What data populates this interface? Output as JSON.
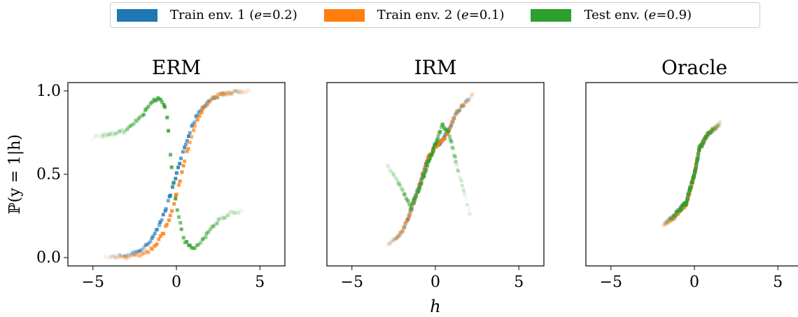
{
  "legend": {
    "items": [
      {
        "prefix": "Train env. 1 (",
        "var": "e",
        "suffix": "=0.2)",
        "color": "#1f77b4"
      },
      {
        "prefix": "Train env. 2 (",
        "var": "e",
        "suffix": "=0.1)",
        "color": "#ff7f0e"
      },
      {
        "prefix": "Test env. (",
        "var": "e",
        "suffix": "=0.9)",
        "color": "#2ca02c"
      }
    ]
  },
  "chart_data": [
    {
      "type": "scatter",
      "title": "ERM",
      "xlabel": "",
      "ylabel": "ℙ(y = 1|h)",
      "xlim": [
        -6.5,
        6.5
      ],
      "ylim": [
        -0.05,
        1.05
      ],
      "xticks": [
        -5,
        0,
        5
      ],
      "yticks": [
        0.0,
        0.5,
        1.0
      ],
      "series": [
        {
          "color": "#1f77b4",
          "shape": "sigmoid",
          "x_range": [
            -4.0,
            4.0
          ],
          "y_range": [
            0.0,
            1.0
          ],
          "k": 1.4,
          "x0": 0.0
        },
        {
          "color": "#ff7f0e",
          "shape": "sigmoid",
          "x_range": [
            -4.3,
            4.5
          ],
          "y_range": [
            0.0,
            1.0
          ],
          "k": 1.6,
          "x0": 0.3
        },
        {
          "color": "#2ca02c",
          "shape": "path",
          "points": [
            [
              -5.0,
              0.72
            ],
            [
              -4.0,
              0.74
            ],
            [
              -3.0,
              0.76
            ],
            [
              -2.0,
              0.86
            ],
            [
              -1.5,
              0.94
            ],
            [
              -1.0,
              0.95
            ],
            [
              -0.6,
              0.9
            ],
            [
              -0.3,
              0.55
            ],
            [
              0.0,
              0.3
            ],
            [
              0.5,
              0.1
            ],
            [
              1.0,
              0.05
            ],
            [
              1.5,
              0.1
            ],
            [
              2.5,
              0.22
            ],
            [
              3.2,
              0.27
            ],
            [
              4.0,
              0.28
            ]
          ]
        }
      ]
    },
    {
      "type": "scatter",
      "title": "IRM",
      "xlabel": "h",
      "ylabel": "",
      "xlim": [
        -6.5,
        6.5
      ],
      "ylim": [
        -0.05,
        1.05
      ],
      "xticks": [
        -5,
        0,
        5
      ],
      "yticks": [],
      "series": [
        {
          "color": "#1f77b4",
          "shape": "path",
          "points": [
            [
              -2.8,
              0.08
            ],
            [
              -2.0,
              0.15
            ],
            [
              -1.5,
              0.27
            ],
            [
              -1.0,
              0.42
            ],
            [
              -0.5,
              0.58
            ],
            [
              0.0,
              0.67
            ],
            [
              0.4,
              0.7
            ],
            [
              0.8,
              0.76
            ],
            [
              1.2,
              0.86
            ],
            [
              1.8,
              0.93
            ],
            [
              2.2,
              0.97
            ]
          ]
        },
        {
          "color": "#ff7f0e",
          "shape": "path",
          "points": [
            [
              -2.9,
              0.07
            ],
            [
              -2.0,
              0.15
            ],
            [
              -1.5,
              0.27
            ],
            [
              -1.0,
              0.42
            ],
            [
              -0.5,
              0.58
            ],
            [
              0.0,
              0.67
            ],
            [
              0.4,
              0.7
            ],
            [
              0.8,
              0.76
            ],
            [
              1.2,
              0.86
            ],
            [
              1.8,
              0.93
            ],
            [
              2.3,
              0.98
            ]
          ]
        },
        {
          "color": "#2ca02c",
          "shape": "path",
          "points": [
            [
              -2.9,
              0.55
            ],
            [
              -2.2,
              0.45
            ],
            [
              -1.5,
              0.3
            ],
            [
              -1.0,
              0.4
            ],
            [
              -0.5,
              0.55
            ],
            [
              0.0,
              0.68
            ],
            [
              0.4,
              0.8
            ],
            [
              0.8,
              0.75
            ],
            [
              1.3,
              0.55
            ],
            [
              1.7,
              0.4
            ],
            [
              2.1,
              0.25
            ]
          ]
        }
      ]
    },
    {
      "type": "scatter",
      "title": "Oracle",
      "xlabel": "",
      "ylabel": "",
      "xlim": [
        -6.5,
        6.5
      ],
      "ylim": [
        -0.05,
        1.05
      ],
      "xticks": [
        -5,
        0,
        5
      ],
      "yticks": [],
      "series": [
        {
          "color": "#1f77b4",
          "shape": "path",
          "points": [
            [
              -1.8,
              0.2
            ],
            [
              -1.2,
              0.25
            ],
            [
              -0.5,
              0.33
            ],
            [
              0.0,
              0.5
            ],
            [
              0.3,
              0.65
            ],
            [
              0.8,
              0.74
            ],
            [
              1.5,
              0.8
            ]
          ]
        },
        {
          "color": "#ff7f0e",
          "shape": "path",
          "points": [
            [
              -1.9,
              0.19
            ],
            [
              -1.2,
              0.24
            ],
            [
              -0.5,
              0.32
            ],
            [
              0.0,
              0.5
            ],
            [
              0.3,
              0.66
            ],
            [
              0.8,
              0.74
            ],
            [
              1.6,
              0.81
            ]
          ]
        },
        {
          "color": "#2ca02c",
          "shape": "path",
          "points": [
            [
              -1.7,
              0.21
            ],
            [
              -1.2,
              0.25
            ],
            [
              -0.5,
              0.33
            ],
            [
              0.0,
              0.5
            ],
            [
              0.3,
              0.65
            ],
            [
              0.8,
              0.74
            ],
            [
              1.5,
              0.8
            ]
          ]
        }
      ]
    }
  ]
}
